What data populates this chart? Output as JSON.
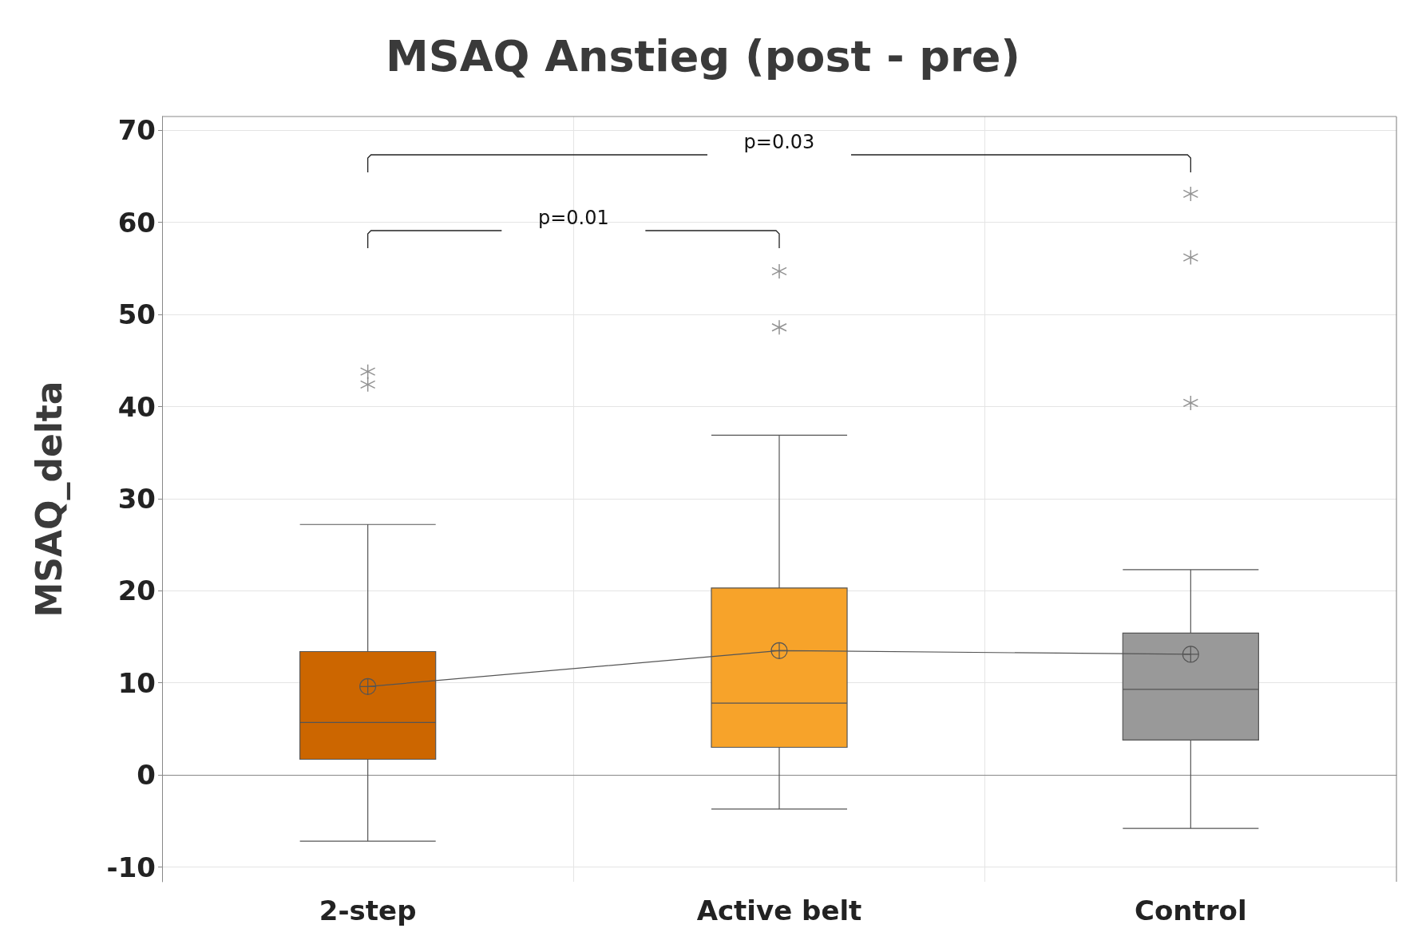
{
  "chart_data": {
    "type": "box",
    "title": "MSAQ Anstieg (post - pre)",
    "ylabel": "MSAQ_delta",
    "categories": [
      "2-step",
      "Active belt",
      "Control"
    ],
    "colors": [
      "#cc6600",
      "#f7a32a",
      "#999999"
    ],
    "boxes": [
      {
        "low": -7.2,
        "q1": 1.7,
        "median": 5.7,
        "q3": 13.4,
        "high": 27.2,
        "outliers": [
          43.8,
          42.4
        ]
      },
      {
        "low": -3.7,
        "q1": 3.0,
        "median": 7.8,
        "q3": 20.3,
        "high": 36.9,
        "outliers": [
          54.7,
          48.6
        ]
      },
      {
        "low": -5.8,
        "q1": 3.8,
        "median": 9.3,
        "q3": 15.4,
        "high": 22.3,
        "outliers": [
          63.1,
          56.2,
          40.4
        ]
      }
    ],
    "series": [
      {
        "type": "line",
        "color": "#555555",
        "x": [
          "2-step",
          "Active belt",
          "Control"
        ],
        "values": [
          9.6,
          13.5,
          13.1
        ]
      }
    ],
    "marker": "circle",
    "ylim": [
      -11.6,
      71.5
    ],
    "yticks": [
      -10,
      0,
      10,
      20,
      30,
      40,
      50,
      60,
      70
    ],
    "grid": true,
    "annotations": [
      "p=0.03",
      "p=0.01"
    ]
  }
}
